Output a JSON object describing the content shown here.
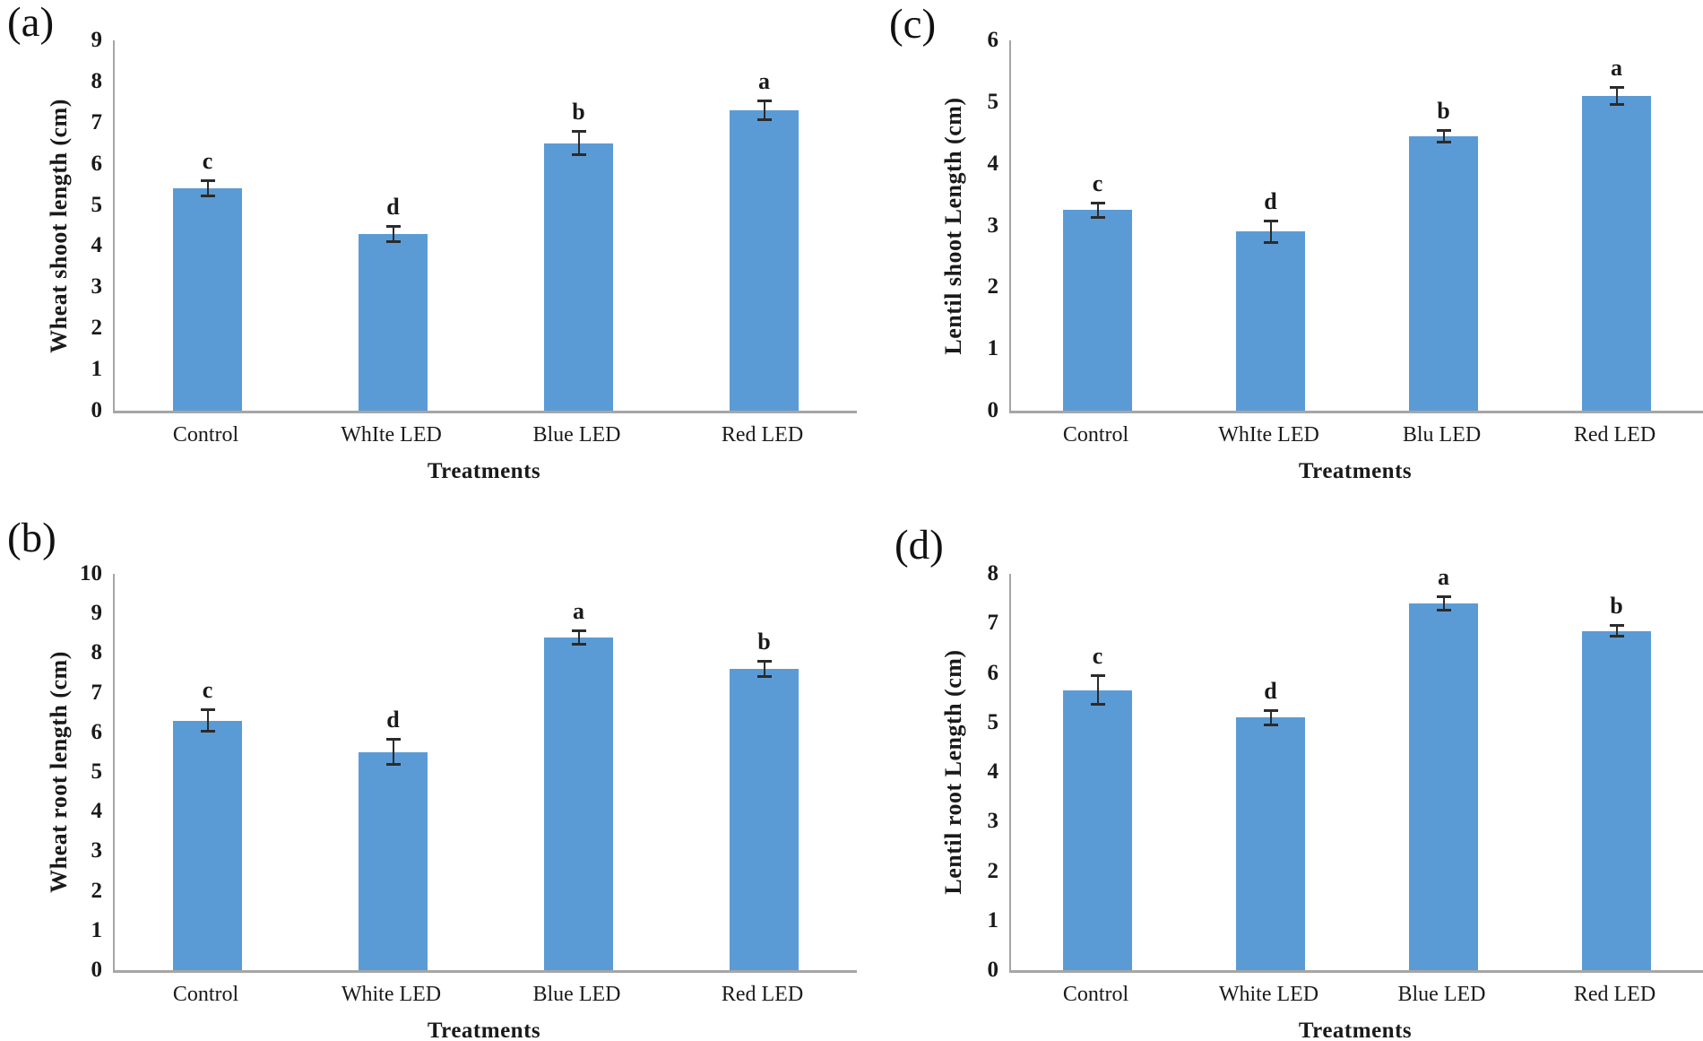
{
  "figure": {
    "background": "#ffffff",
    "bar_color": "#5B9BD5",
    "axis_color": "#a6a6a6",
    "error_bar_color": "#2b2b2b",
    "text_color": "#1a1a1a"
  },
  "chart_data": [
    {
      "panel": "a",
      "panel_label": "(a)",
      "type": "bar",
      "title": "",
      "ylabel": "Wheat shoot length (cm)",
      "xlabel": "Treatments",
      "ylim": [
        0,
        9
      ],
      "ytick_step": 1,
      "grid": false,
      "legend": "none",
      "categories": [
        "Control",
        "WhIte LED",
        "Blue LED",
        "Red LED"
      ],
      "values": [
        5.4,
        4.3,
        6.5,
        7.3
      ],
      "errors": [
        0.2,
        0.2,
        0.3,
        0.25
      ],
      "sig_letters": [
        "c",
        "d",
        "b",
        "a"
      ],
      "bar_color": "#5B9BD5"
    },
    {
      "panel": "b",
      "panel_label": "(b)",
      "type": "bar",
      "title": "",
      "ylabel": "Wheat root length (cm)",
      "xlabel": "Treatments",
      "ylim": [
        0,
        10
      ],
      "ytick_step": 1,
      "grid": false,
      "legend": "none",
      "categories": [
        "Control",
        "White LED",
        "Blue LED",
        "Red LED"
      ],
      "values": [
        6.3,
        5.5,
        8.4,
        7.6
      ],
      "errors": [
        0.28,
        0.33,
        0.18,
        0.2
      ],
      "sig_letters": [
        "c",
        "d",
        "a",
        "b"
      ],
      "bar_color": "#5B9BD5"
    },
    {
      "panel": "c",
      "panel_label": "(c)",
      "type": "bar",
      "title": "",
      "ylabel": "Lentil shoot Length (cm)",
      "xlabel": "Treatments",
      "ylim": [
        0,
        6
      ],
      "ytick_step": 1,
      "grid": false,
      "legend": "none",
      "categories": [
        "Control",
        "WhIte LED",
        "Blu LED",
        "Red LED"
      ],
      "values": [
        3.25,
        2.9,
        4.45,
        5.1
      ],
      "errors": [
        0.12,
        0.18,
        0.1,
        0.15
      ],
      "sig_letters": [
        "c",
        "d",
        "b",
        "a"
      ],
      "bar_color": "#5B9BD5"
    },
    {
      "panel": "d",
      "panel_label": "(d)",
      "type": "bar",
      "title": "",
      "ylabel": "Lentil root Length (cm)",
      "xlabel": "Treatments",
      "ylim": [
        0,
        8
      ],
      "ytick_step": 1,
      "grid": false,
      "legend": "none",
      "categories": [
        "Control",
        "White LED",
        "Blue LED",
        "Red LED"
      ],
      "values": [
        5.65,
        5.1,
        7.4,
        6.85
      ],
      "errors": [
        0.3,
        0.15,
        0.15,
        0.12
      ],
      "sig_letters": [
        "c",
        "d",
        "a",
        "b"
      ],
      "bar_color": "#5B9BD5"
    }
  ]
}
